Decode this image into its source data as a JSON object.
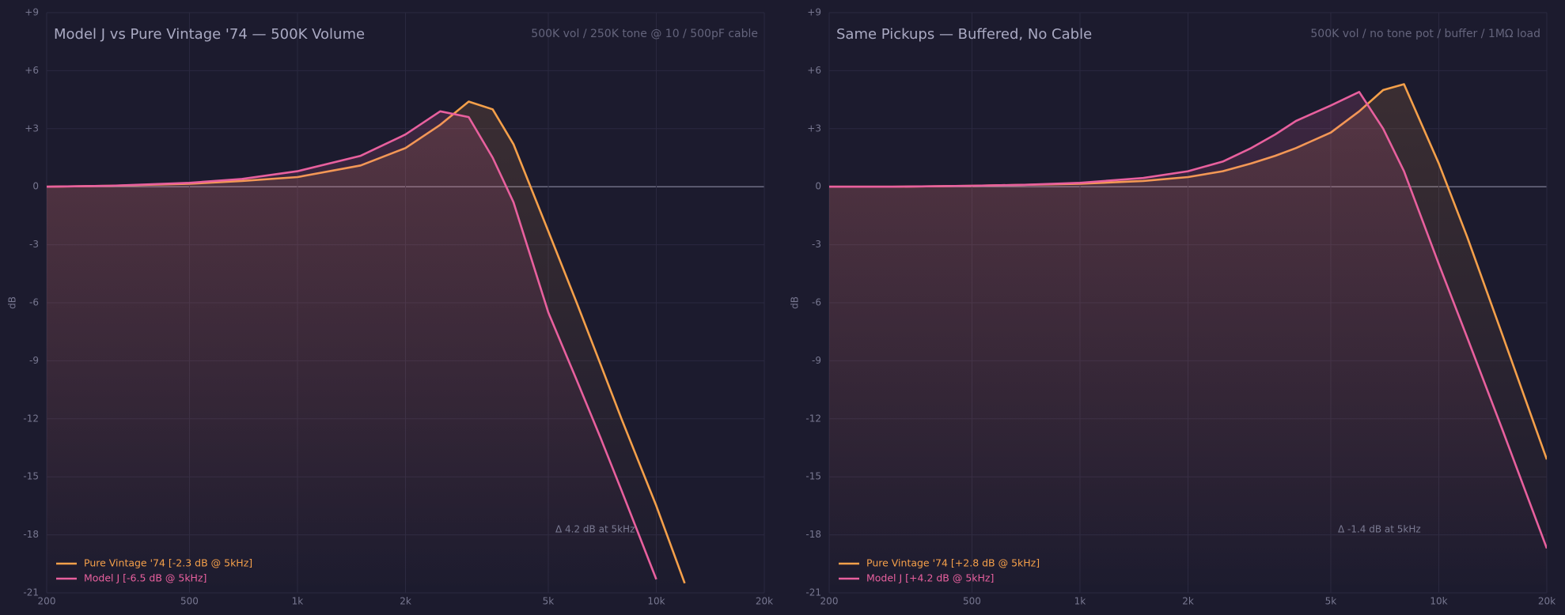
{
  "chart_data": [
    {
      "type": "line",
      "title": "Model J vs Pure Vintage '74 — 500K Volume",
      "subtitle": "500K vol / 250K tone @ 10 / 500pF cable",
      "y_label": "dB",
      "annotation": "Δ 4.2 dB at 5kHz",
      "log_x": true,
      "grid": true,
      "legend": "lower left",
      "x": [
        200,
        300,
        500,
        700,
        1000,
        1500,
        2000,
        2500,
        3000,
        3500,
        4000,
        5000,
        6000,
        7000,
        8000,
        10000,
        12000,
        15000,
        20000
      ],
      "series": [
        {
          "name": "Pure Vintage '74  [-2.3 dB @ 5kHz]",
          "color": "#f5a04a",
          "values": [
            0,
            0.05,
            0.15,
            0.3,
            0.5,
            1.1,
            2.0,
            3.2,
            4.4,
            4.0,
            2.2,
            -2.3,
            -6.0,
            -9.2,
            -12.0,
            -16.5,
            -20.5,
            null,
            null
          ]
        },
        {
          "name": "Model J  [-6.5 dB @ 5kHz]",
          "color": "#e8609e",
          "values": [
            0,
            0.05,
            0.2,
            0.4,
            0.8,
            1.6,
            2.7,
            3.9,
            3.6,
            1.5,
            -0.8,
            -6.5,
            -10.0,
            -13.0,
            -15.7,
            -20.3,
            null,
            null,
            null
          ]
        }
      ],
      "xlim": [
        200,
        20000
      ],
      "xticks": [
        200,
        500,
        {
          "value": 1000,
          "label": "1k"
        },
        {
          "value": 2000,
          "label": "2k"
        },
        {
          "value": 5000,
          "label": "5k"
        },
        {
          "value": 10000,
          "label": "10k"
        },
        {
          "value": 20000,
          "label": "20k"
        }
      ],
      "ylim": [
        -21,
        9
      ],
      "yticks": [
        -21,
        -18,
        -15,
        -12,
        -9,
        -6,
        -3,
        0,
        {
          "value": 3,
          "label": "+3"
        },
        {
          "value": 6,
          "label": "+6"
        },
        {
          "value": 9,
          "label": "+9"
        }
      ]
    },
    {
      "type": "line",
      "title": "Same Pickups — Buffered, No Cable",
      "subtitle": "500K vol / no tone pot / buffer / 1MΩ load",
      "y_label": "dB",
      "annotation": "Δ -1.4 dB at 5kHz",
      "log_x": true,
      "grid": true,
      "legend": "lower left",
      "x": [
        200,
        300,
        500,
        700,
        1000,
        1500,
        2000,
        2500,
        3000,
        3500,
        4000,
        5000,
        6000,
        7000,
        8000,
        10000,
        12000,
        15000,
        20000
      ],
      "series": [
        {
          "name": "Pure Vintage '74  [+2.8 dB @ 5kHz]",
          "color": "#f5a04a",
          "values": [
            0,
            0,
            0.05,
            0.1,
            0.15,
            0.3,
            0.5,
            0.8,
            1.2,
            1.6,
            2.0,
            2.8,
            3.9,
            5.0,
            5.3,
            1.2,
            -2.6,
            -7.6,
            -14.1
          ]
        },
        {
          "name": "Model J  [+4.2 dB @ 5kHz]",
          "color": "#e8609e",
          "values": [
            0,
            0,
            0.05,
            0.1,
            0.2,
            0.45,
            0.8,
            1.3,
            2.0,
            2.7,
            3.4,
            4.2,
            4.9,
            3.0,
            0.8,
            -4.0,
            -7.8,
            -12.5,
            -18.7
          ]
        }
      ],
      "xlim": [
        200,
        20000
      ],
      "xticks": [
        200,
        500,
        {
          "value": 1000,
          "label": "1k"
        },
        {
          "value": 2000,
          "label": "2k"
        },
        {
          "value": 5000,
          "label": "5k"
        },
        {
          "value": 10000,
          "label": "10k"
        },
        {
          "value": 20000,
          "label": "20k"
        }
      ],
      "ylim": [
        -21,
        9
      ],
      "yticks": [
        -21,
        -18,
        -15,
        -12,
        -9,
        -6,
        -3,
        0,
        {
          "value": 3,
          "label": "+3"
        },
        {
          "value": 6,
          "label": "+6"
        },
        {
          "value": 9,
          "label": "+9"
        }
      ]
    }
  ]
}
